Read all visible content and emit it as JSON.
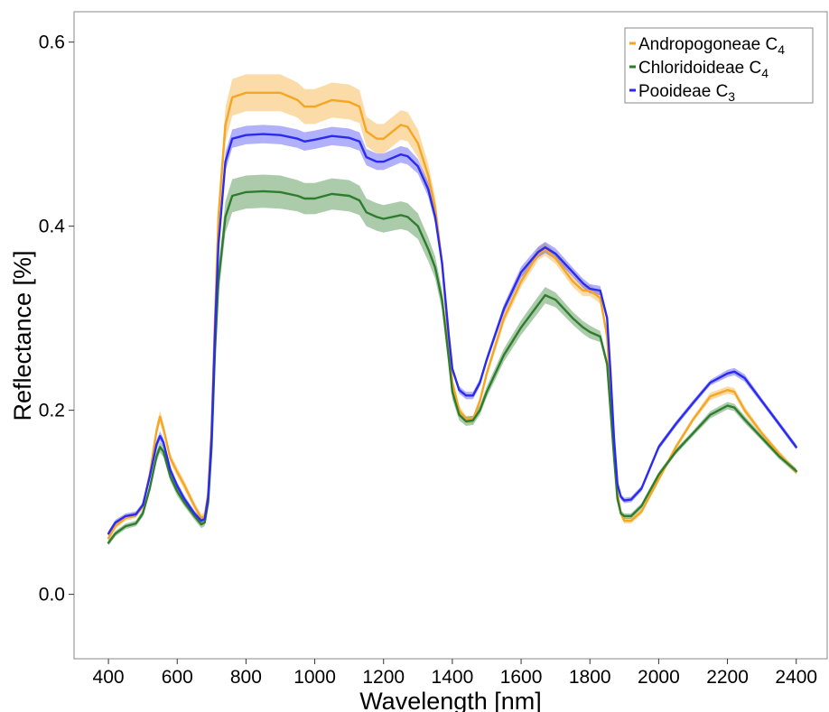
{
  "chart_data": {
    "type": "line",
    "title": "",
    "xlabel": "Wavelength [nm]",
    "ylabel": "Reflectance [%]",
    "xlim": [
      300,
      2490
    ],
    "ylim": [
      -0.07,
      0.633
    ],
    "xticks": [
      400,
      600,
      800,
      1000,
      1200,
      1400,
      1600,
      1800,
      2000,
      2200,
      2400
    ],
    "yticks": [
      0.0,
      0.2,
      0.4,
      0.6
    ],
    "ytick_labels": [
      "0.0",
      "0.2",
      "0.4",
      "0.6"
    ],
    "grid": false,
    "legend_position": "top-right",
    "band": "shaded ribbon around each mean spectrum",
    "series": [
      {
        "name": "Andropogoneae C",
        "subscript": "4",
        "color": "#f5a623",
        "band_color": "#f5a623",
        "x": [
          400,
          420,
          450,
          480,
          500,
          520,
          540,
          550,
          560,
          580,
          600,
          620,
          650,
          670,
          680,
          690,
          700,
          710,
          720,
          740,
          760,
          800,
          850,
          900,
          950,
          970,
          1000,
          1050,
          1100,
          1130,
          1150,
          1180,
          1200,
          1250,
          1270,
          1300,
          1330,
          1350,
          1370,
          1390,
          1400,
          1420,
          1440,
          1460,
          1480,
          1500,
          1550,
          1600,
          1650,
          1670,
          1700,
          1750,
          1780,
          1800,
          1830,
          1850,
          1860,
          1870,
          1880,
          1890,
          1900,
          1920,
          1950,
          2000,
          2050,
          2100,
          2150,
          2200,
          2220,
          2250,
          2300,
          2350,
          2400
        ],
        "y": [
          0.061,
          0.074,
          0.083,
          0.086,
          0.096,
          0.13,
          0.178,
          0.193,
          0.18,
          0.148,
          0.133,
          0.119,
          0.096,
          0.083,
          0.085,
          0.11,
          0.18,
          0.3,
          0.41,
          0.51,
          0.54,
          0.545,
          0.545,
          0.545,
          0.537,
          0.53,
          0.53,
          0.537,
          0.535,
          0.53,
          0.503,
          0.495,
          0.495,
          0.51,
          0.508,
          0.49,
          0.455,
          0.42,
          0.36,
          0.27,
          0.23,
          0.2,
          0.19,
          0.19,
          0.21,
          0.24,
          0.3,
          0.34,
          0.37,
          0.375,
          0.365,
          0.34,
          0.33,
          0.33,
          0.322,
          0.28,
          0.22,
          0.16,
          0.11,
          0.088,
          0.08,
          0.08,
          0.09,
          0.125,
          0.16,
          0.19,
          0.215,
          0.222,
          0.22,
          0.2,
          0.175,
          0.153,
          0.133
        ],
        "band_halfwidth": [
          0.003,
          0.003,
          0.003,
          0.003,
          0.004,
          0.005,
          0.006,
          0.007,
          0.006,
          0.005,
          0.005,
          0.005,
          0.004,
          0.004,
          0.004,
          0.005,
          0.008,
          0.012,
          0.016,
          0.019,
          0.02,
          0.02,
          0.02,
          0.02,
          0.019,
          0.019,
          0.019,
          0.019,
          0.019,
          0.018,
          0.016,
          0.016,
          0.016,
          0.016,
          0.016,
          0.015,
          0.013,
          0.012,
          0.01,
          0.008,
          0.007,
          0.005,
          0.004,
          0.004,
          0.004,
          0.005,
          0.006,
          0.006,
          0.007,
          0.007,
          0.006,
          0.006,
          0.006,
          0.006,
          0.006,
          0.005,
          0.004,
          0.003,
          0.003,
          0.003,
          0.003,
          0.003,
          0.003,
          0.003,
          0.003,
          0.003,
          0.004,
          0.004,
          0.004,
          0.004,
          0.003,
          0.003,
          0.003
        ]
      },
      {
        "name": "Chloridoideae C",
        "subscript": "4",
        "color": "#2e7d2e",
        "band_color": "#2e7d2e",
        "x": [
          400,
          420,
          450,
          480,
          500,
          520,
          540,
          550,
          560,
          580,
          600,
          620,
          650,
          670,
          680,
          690,
          700,
          710,
          720,
          740,
          760,
          800,
          850,
          900,
          950,
          970,
          1000,
          1050,
          1100,
          1130,
          1150,
          1180,
          1200,
          1250,
          1270,
          1300,
          1330,
          1350,
          1370,
          1390,
          1400,
          1420,
          1440,
          1460,
          1480,
          1500,
          1550,
          1600,
          1650,
          1670,
          1700,
          1750,
          1780,
          1800,
          1830,
          1850,
          1860,
          1870,
          1880,
          1890,
          1900,
          1920,
          1950,
          2000,
          2050,
          2100,
          2150,
          2200,
          2220,
          2250,
          2300,
          2350,
          2400
        ],
        "y": [
          0.056,
          0.066,
          0.074,
          0.077,
          0.088,
          0.115,
          0.15,
          0.16,
          0.155,
          0.128,
          0.112,
          0.1,
          0.085,
          0.076,
          0.078,
          0.1,
          0.16,
          0.265,
          0.34,
          0.41,
          0.433,
          0.437,
          0.438,
          0.437,
          0.433,
          0.43,
          0.43,
          0.435,
          0.433,
          0.428,
          0.415,
          0.41,
          0.408,
          0.412,
          0.41,
          0.4,
          0.375,
          0.355,
          0.32,
          0.255,
          0.22,
          0.195,
          0.188,
          0.189,
          0.2,
          0.22,
          0.26,
          0.29,
          0.315,
          0.325,
          0.32,
          0.3,
          0.29,
          0.285,
          0.28,
          0.25,
          0.2,
          0.15,
          0.104,
          0.088,
          0.085,
          0.085,
          0.096,
          0.13,
          0.155,
          0.175,
          0.195,
          0.205,
          0.203,
          0.19,
          0.17,
          0.15,
          0.134
        ],
        "band_halfwidth": [
          0.003,
          0.003,
          0.003,
          0.003,
          0.004,
          0.005,
          0.006,
          0.006,
          0.006,
          0.005,
          0.005,
          0.004,
          0.004,
          0.004,
          0.004,
          0.005,
          0.008,
          0.012,
          0.015,
          0.017,
          0.018,
          0.018,
          0.018,
          0.018,
          0.017,
          0.017,
          0.017,
          0.017,
          0.017,
          0.016,
          0.015,
          0.015,
          0.015,
          0.015,
          0.015,
          0.014,
          0.013,
          0.012,
          0.011,
          0.009,
          0.008,
          0.006,
          0.005,
          0.005,
          0.005,
          0.006,
          0.007,
          0.008,
          0.009,
          0.009,
          0.008,
          0.007,
          0.007,
          0.007,
          0.006,
          0.005,
          0.004,
          0.004,
          0.003,
          0.003,
          0.003,
          0.003,
          0.003,
          0.003,
          0.003,
          0.003,
          0.004,
          0.004,
          0.004,
          0.004,
          0.003,
          0.003,
          0.003
        ]
      },
      {
        "name": "Pooideae C",
        "subscript": "3",
        "color": "#2a2af0",
        "band_color": "#3a3af5",
        "x": [
          400,
          420,
          450,
          480,
          500,
          520,
          540,
          550,
          560,
          580,
          600,
          620,
          650,
          670,
          680,
          690,
          700,
          710,
          720,
          740,
          760,
          800,
          850,
          900,
          950,
          970,
          1000,
          1050,
          1100,
          1130,
          1150,
          1180,
          1200,
          1250,
          1270,
          1300,
          1330,
          1350,
          1370,
          1390,
          1400,
          1420,
          1440,
          1460,
          1480,
          1500,
          1550,
          1600,
          1650,
          1670,
          1700,
          1750,
          1780,
          1800,
          1830,
          1850,
          1860,
          1870,
          1880,
          1890,
          1900,
          1920,
          1950,
          2000,
          2050,
          2100,
          2150,
          2200,
          2220,
          2250,
          2300,
          2350,
          2400
        ],
        "y": [
          0.066,
          0.078,
          0.085,
          0.087,
          0.097,
          0.128,
          0.163,
          0.172,
          0.165,
          0.135,
          0.118,
          0.104,
          0.088,
          0.08,
          0.082,
          0.105,
          0.17,
          0.285,
          0.38,
          0.47,
          0.495,
          0.499,
          0.5,
          0.499,
          0.495,
          0.492,
          0.494,
          0.498,
          0.496,
          0.492,
          0.475,
          0.47,
          0.47,
          0.478,
          0.476,
          0.465,
          0.44,
          0.41,
          0.36,
          0.28,
          0.245,
          0.222,
          0.216,
          0.216,
          0.23,
          0.255,
          0.31,
          0.35,
          0.372,
          0.377,
          0.37,
          0.35,
          0.338,
          0.332,
          0.33,
          0.3,
          0.24,
          0.17,
          0.12,
          0.106,
          0.102,
          0.103,
          0.115,
          0.16,
          0.185,
          0.208,
          0.23,
          0.24,
          0.242,
          0.235,
          0.21,
          0.185,
          0.16
        ],
        "band_halfwidth": [
          0.003,
          0.003,
          0.003,
          0.003,
          0.003,
          0.004,
          0.005,
          0.005,
          0.005,
          0.004,
          0.004,
          0.004,
          0.003,
          0.003,
          0.003,
          0.004,
          0.006,
          0.008,
          0.01,
          0.01,
          0.01,
          0.01,
          0.01,
          0.01,
          0.01,
          0.01,
          0.01,
          0.01,
          0.01,
          0.01,
          0.009,
          0.009,
          0.009,
          0.009,
          0.009,
          0.008,
          0.008,
          0.007,
          0.006,
          0.005,
          0.004,
          0.004,
          0.004,
          0.004,
          0.004,
          0.004,
          0.005,
          0.006,
          0.006,
          0.006,
          0.006,
          0.005,
          0.005,
          0.005,
          0.005,
          0.004,
          0.004,
          0.003,
          0.003,
          0.003,
          0.003,
          0.003,
          0.003,
          0.003,
          0.003,
          0.003,
          0.003,
          0.004,
          0.004,
          0.004,
          0.003,
          0.003,
          0.003
        ]
      }
    ]
  }
}
